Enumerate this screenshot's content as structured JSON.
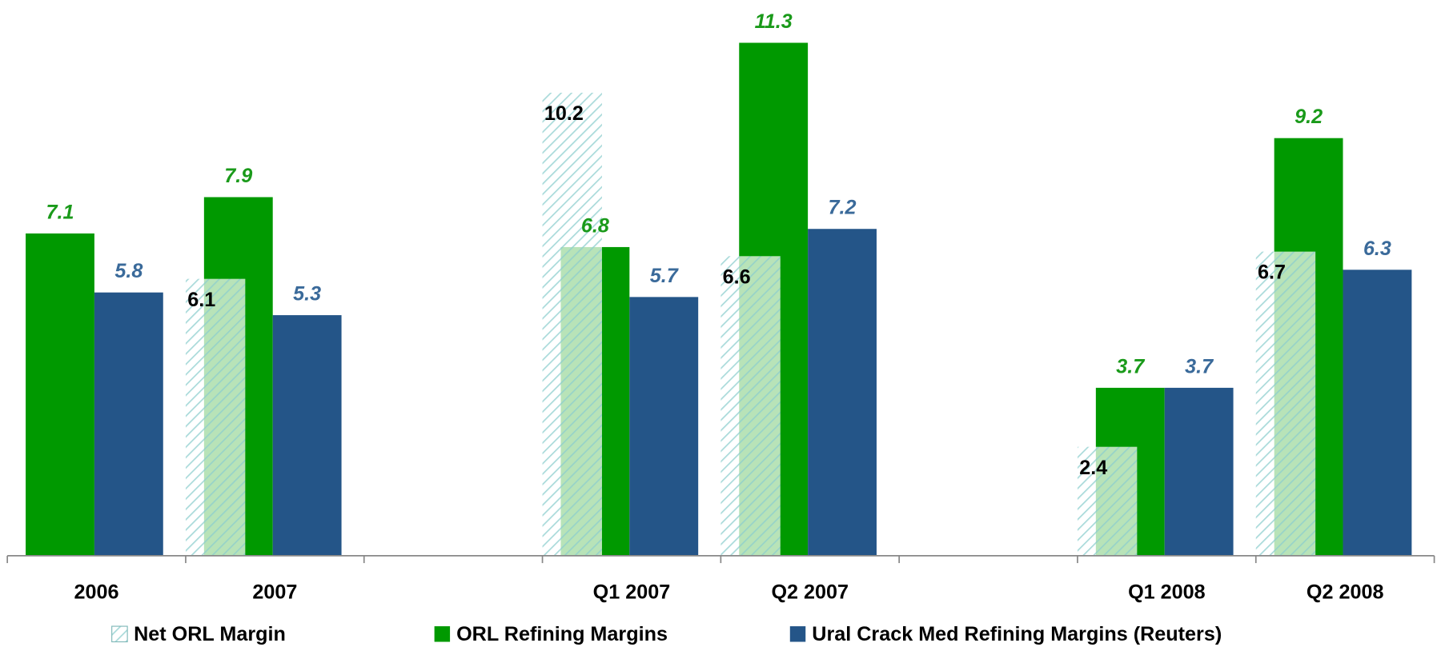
{
  "chart_data": {
    "type": "bar",
    "categories": [
      "2006",
      "2007",
      null,
      "Q1 2007",
      "Q2 2007",
      null,
      "Q1 2008",
      "Q2 2008"
    ],
    "series": [
      {
        "name": "Net ORL Margin",
        "color": "#a8d8d8",
        "values": [
          null,
          6.1,
          null,
          10.2,
          6.6,
          null,
          2.4,
          6.7
        ]
      },
      {
        "name": "ORL Refining Margins",
        "color": "#009900",
        "values": [
          7.1,
          7.9,
          null,
          6.8,
          11.3,
          null,
          3.7,
          9.2
        ]
      },
      {
        "name": "Ural Crack Med Refining Margins (Reuters)",
        "color": "#245588",
        "values": [
          5.8,
          5.3,
          null,
          5.7,
          7.2,
          null,
          3.7,
          6.3
        ]
      }
    ],
    "ylim": [
      0,
      12
    ],
    "legend": "bottom"
  }
}
